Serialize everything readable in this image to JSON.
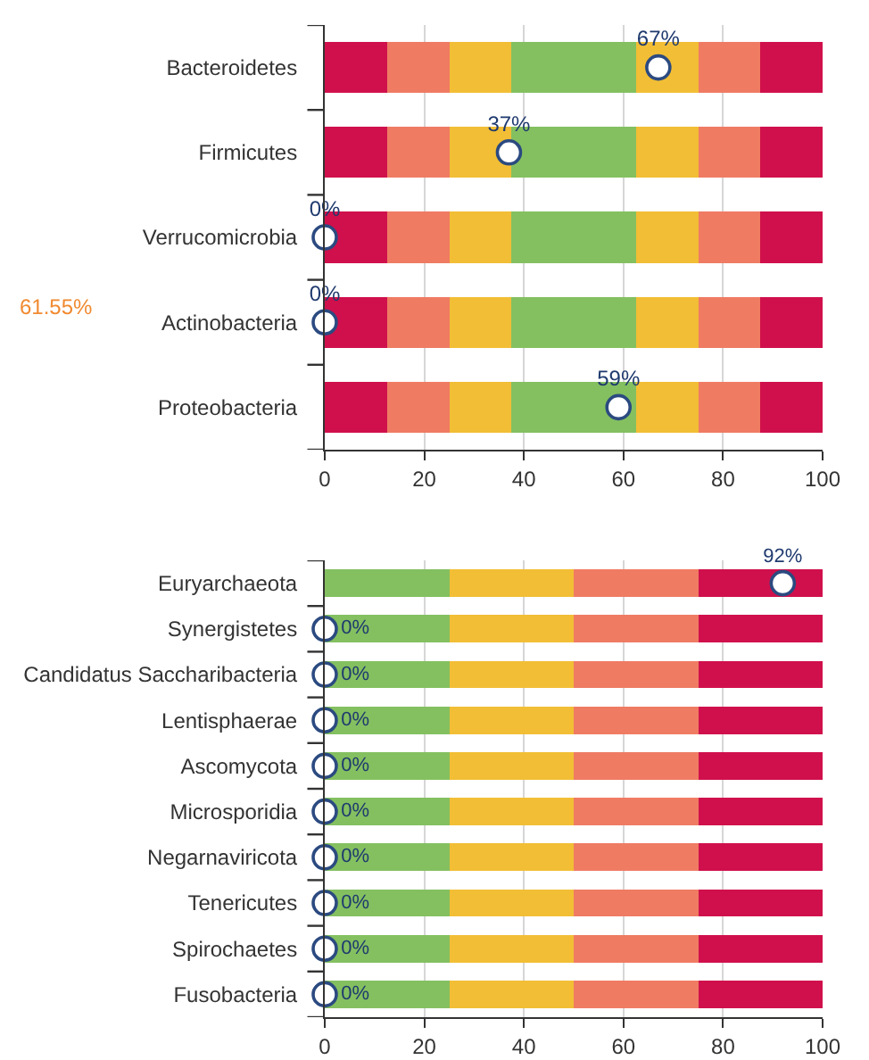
{
  "chart_data": [
    {
      "type": "bar",
      "orientation": "horizontal",
      "stacked": true,
      "categories": [
        "Bacteroidetes",
        "Firmicutes",
        "Verrucomicrobia",
        "Actinobacteria",
        "Proteobacteria"
      ],
      "series": [
        {
          "color": "#d0104c",
          "values": [
            12.5,
            12.5,
            12.5,
            12.5,
            12.5
          ]
        },
        {
          "color": "#ef7b63",
          "values": [
            12.5,
            12.5,
            12.5,
            12.5,
            12.5
          ]
        },
        {
          "color": "#f2be35",
          "values": [
            12.5,
            12.5,
            12.5,
            12.5,
            12.5
          ]
        },
        {
          "color": "#84c060",
          "values": [
            25,
            25,
            25,
            25,
            25
          ]
        },
        {
          "color": "#f2be35",
          "values": [
            12.5,
            12.5,
            12.5,
            12.5,
            12.5
          ]
        },
        {
          "color": "#ef7b63",
          "values": [
            12.5,
            12.5,
            12.5,
            12.5,
            12.5
          ]
        },
        {
          "color": "#d0104c",
          "values": [
            12.5,
            12.5,
            12.5,
            12.5,
            12.5
          ]
        },
        {
          "type": "scatter",
          "color": "#ffffff",
          "values": [
            67,
            37,
            0,
            0,
            59
          ],
          "value_labels": [
            "67%",
            "37%",
            "0%",
            "0%",
            "59%"
          ]
        }
      ],
      "xlim": [
        0,
        100
      ],
      "xticks": [
        0,
        20,
        40,
        60,
        80,
        100
      ],
      "grid": "x",
      "marker": "circle",
      "annotations": [
        "61.55%"
      ]
    },
    {
      "type": "bar",
      "orientation": "horizontal",
      "stacked": true,
      "categories": [
        "Euryarchaeota",
        "Synergistetes",
        "Candidatus Saccharibacteria",
        "Lentisphaerae",
        "Ascomycota",
        "Microsporidia",
        "Negarnaviricota",
        "Tenericutes",
        "Spirochaetes",
        "Fusobacteria"
      ],
      "series": [
        {
          "color": "#84c060",
          "values": [
            25,
            25,
            25,
            25,
            25,
            25,
            25,
            25,
            25,
            25
          ]
        },
        {
          "color": "#f2be35",
          "values": [
            25,
            25,
            25,
            25,
            25,
            25,
            25,
            25,
            25,
            25
          ]
        },
        {
          "color": "#ef7b63",
          "values": [
            25,
            25,
            25,
            25,
            25,
            25,
            25,
            25,
            25,
            25
          ]
        },
        {
          "color": "#d0104c",
          "values": [
            25,
            25,
            25,
            25,
            25,
            25,
            25,
            25,
            25,
            25
          ]
        },
        {
          "type": "scatter",
          "color": "#ffffff",
          "values": [
            92,
            0,
            0,
            0,
            0,
            0,
            0,
            0,
            0,
            0
          ],
          "value_labels": [
            "92%",
            "0%",
            "0%",
            "0%",
            "0%",
            "0%",
            "0%",
            "0%",
            "0%",
            "0%"
          ]
        }
      ],
      "xlim": [
        0,
        100
      ],
      "xticks": [
        0,
        20,
        40,
        60,
        80,
        100
      ],
      "grid": "x",
      "marker": "circle"
    }
  ]
}
